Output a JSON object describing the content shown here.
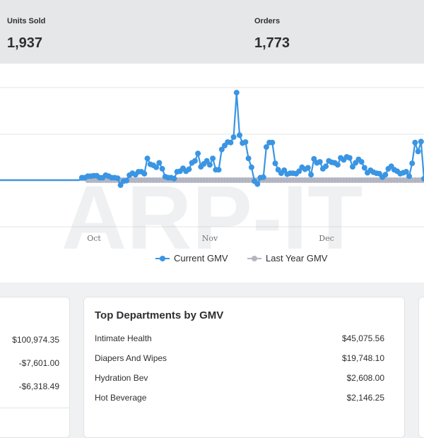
{
  "kpis": [
    {
      "label": "Units Sold",
      "value": "1,937"
    },
    {
      "label": "Orders",
      "value": "1,773"
    }
  ],
  "legend": [
    {
      "name": "Current GMV",
      "color": "#3a95e3"
    },
    {
      "name": "Last Year GMV",
      "color": "#b3b6c2"
    }
  ],
  "left_card": {
    "values": [
      "$100,974.35",
      "-$7,601.00",
      "-$6,318.49"
    ]
  },
  "departments": {
    "title": "Top Departments by GMV",
    "rows": [
      {
        "name": "Intimate Health",
        "value": "$45,075.56"
      },
      {
        "name": "Diapers And Wipes",
        "value": "$19,748.10"
      },
      {
        "name": "Hydration Bev",
        "value": "$2,608.00"
      },
      {
        "name": "Hot Beverage",
        "value": "$2,146.25"
      }
    ]
  },
  "watermark": {
    "text": "ARP-IT"
  },
  "chart_data": {
    "type": "line",
    "x_tick_labels": [
      "Oct",
      "Nov",
      "Dec"
    ],
    "series": [
      {
        "name": "Current GMV",
        "color": "#3a95e3",
        "values": [
          0,
          0,
          0,
          0,
          0,
          0,
          0,
          0,
          0,
          0,
          0,
          0,
          0,
          0,
          0,
          0,
          0,
          0,
          0,
          0,
          0,
          0,
          0,
          0,
          0,
          0,
          0,
          0,
          0.5,
          0.5,
          0.8,
          0.8,
          0.9,
          0.9,
          0.5,
          0.5,
          1,
          0.8,
          0.5,
          0.5,
          0.4,
          -1,
          -0.2,
          -0.1,
          1,
          1.4,
          1.1,
          1.7,
          1.7,
          1.3,
          4.4,
          3.2,
          3,
          2.6,
          3.5,
          2.3,
          0.7,
          0.5,
          0.5,
          0.3,
          1.7,
          1.8,
          2.4,
          1.8,
          2.2,
          3.5,
          3.9,
          5.4,
          2.7,
          3.3,
          3.9,
          3.1,
          4.4,
          2.1,
          2.1,
          6.2,
          7,
          7.7,
          7.6,
          8.7,
          17.7,
          9.1,
          7.5,
          7.7,
          4.4,
          2.6,
          -0.2,
          -0.8,
          0.5,
          0.6,
          6.7,
          7.6,
          7.6,
          3.4,
          2.1,
          1.4,
          2,
          1.2,
          1.4,
          1.4,
          1.3,
          1.8,
          2.6,
          2.2,
          2.5,
          1.1,
          4.3,
          3.5,
          3.7,
          2.3,
          2.8,
          3.9,
          3.6,
          3.5,
          3.1,
          4.5,
          4.1,
          4.7,
          4.5,
          2.7,
          3.5,
          4.2,
          3.7,
          2.5,
          1.5,
          2,
          1.6,
          1.4,
          1.3,
          0.6,
          1.1,
          2.3,
          2.8,
          2.1,
          1.8,
          1.3,
          1.5,
          1.7,
          0.8,
          3.4,
          7.6,
          5.8,
          7.8,
          0.3,
          0.2,
          -0.2,
          -0.7
        ]
      },
      {
        "name": "Last Year GMV",
        "color": "#b3b6c2",
        "values": [
          0,
          0,
          0,
          0,
          0,
          0,
          0,
          0,
          0,
          0,
          0,
          0,
          0,
          0,
          0,
          0,
          0,
          0,
          0,
          0,
          0,
          0,
          0,
          0,
          0,
          0,
          0,
          0,
          0,
          0,
          0,
          0,
          0,
          0,
          0,
          0,
          0,
          0,
          0,
          0,
          0,
          0,
          0,
          0,
          0,
          0,
          0,
          0,
          0,
          0,
          0,
          0,
          0,
          0,
          0,
          0,
          0,
          0,
          0,
          0,
          0,
          0,
          0,
          0,
          0,
          0,
          0,
          0,
          0,
          0,
          0,
          0,
          0,
          0,
          0,
          0,
          0,
          0,
          0,
          0,
          0,
          0,
          0,
          0,
          0,
          0,
          0,
          0,
          0,
          0,
          0,
          0,
          0,
          0,
          0,
          0,
          0,
          0,
          0,
          0,
          0,
          0,
          0,
          0,
          0,
          0,
          0,
          0,
          0,
          0,
          0,
          0,
          0,
          0,
          0,
          0,
          0,
          0,
          0,
          0,
          0,
          0,
          0,
          0,
          0,
          0,
          0,
          0,
          0,
          0,
          0,
          0,
          0,
          0,
          0,
          0,
          0,
          0,
          0,
          0,
          0,
          0,
          0,
          0,
          0,
          0,
          0
        ]
      }
    ],
    "grid": true,
    "legend_position": "bottom"
  }
}
